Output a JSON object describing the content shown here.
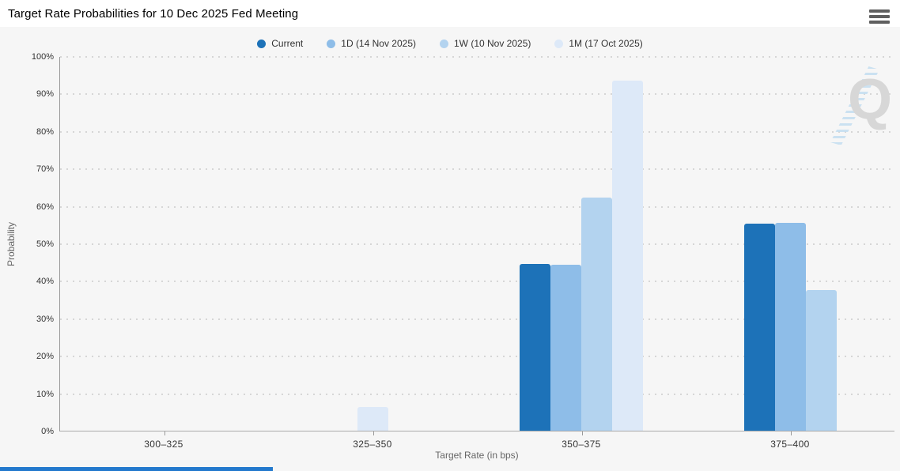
{
  "header": {
    "menu_icon": "hamburger-icon"
  },
  "watermark": {
    "letter": "Q"
  },
  "ui": {
    "background_color": "#f6f6f6",
    "progress_bar_color": "#2379cd",
    "axis_color": "#999999"
  },
  "chart_data": {
    "type": "bar",
    "title": "Target Rate Probabilities for 10 Dec 2025 Fed Meeting",
    "xlabel": "Target Rate (in bps)",
    "ylabel": "Probability",
    "categories": [
      "300–325",
      "325–350",
      "350–375",
      "375–400"
    ],
    "series": [
      {
        "name": "Current",
        "color": "#1d72b8",
        "values": [
          0,
          0,
          44.7,
          55.3
        ]
      },
      {
        "name": "1D (14 Nov 2025)",
        "color": "#8ebde8",
        "values": [
          0,
          0,
          44.3,
          55.7
        ]
      },
      {
        "name": "1W (10 Nov 2025)",
        "color": "#b3d3ef",
        "values": [
          0,
          0,
          62.3,
          37.7
        ]
      },
      {
        "name": "1M (17 Oct 2025)",
        "color": "#dde9f8",
        "values": [
          0,
          6.3,
          93.7,
          0
        ]
      }
    ],
    "ylim": [
      0,
      100
    ],
    "ytick_step": 10,
    "ytick_labels": [
      "0%",
      "10%",
      "20%",
      "30%",
      "40%",
      "50%",
      "60%",
      "70%",
      "80%",
      "90%",
      "100%"
    ],
    "legend_position": "top-center",
    "grid": "dotted-horizontal"
  }
}
